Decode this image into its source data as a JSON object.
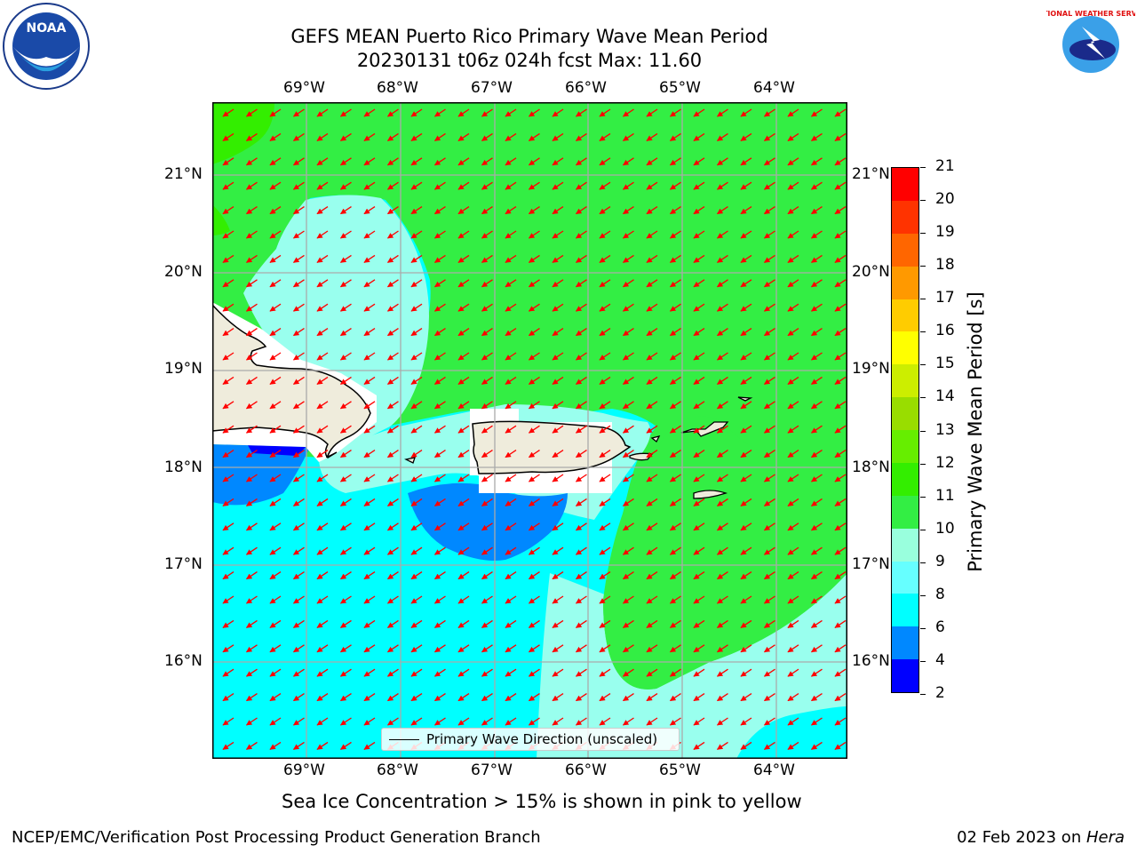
{
  "title": {
    "line1": "GEFS MEAN Puerto Rico Primary Wave Mean Period",
    "line2": "20230131 t06z 024h fcst   Max: 11.60"
  },
  "map": {
    "lon_labels": [
      "69°W",
      "68°W",
      "67°W",
      "66°W",
      "65°W",
      "64°W"
    ],
    "lat_labels": [
      "21°N",
      "20°N",
      "19°N",
      "18°N",
      "17°N",
      "16°N"
    ],
    "legend_label": "Primary Wave Direction (unscaled)"
  },
  "colorbar": {
    "label": "Primary Wave Mean Period [s]",
    "ticks": [
      "21",
      "20",
      "19",
      "18",
      "17",
      "16",
      "15",
      "14",
      "13",
      "12",
      "11",
      "10",
      "9",
      "8",
      "6",
      "4",
      "2"
    ],
    "colors": [
      "#ff0000",
      "#ff3300",
      "#ff6600",
      "#ff9900",
      "#ffcc00",
      "#ffff00",
      "#ccee00",
      "#99dd00",
      "#66ee00",
      "#33ee00",
      "#33ee44",
      "#99ffdd",
      "#66ffff",
      "#00ffff",
      "#0088ff",
      "#0000ff"
    ]
  },
  "note": "Sea Ice Concentration > 15% is shown in pink to yellow",
  "footer": {
    "left": "NCEP/EMC/Verification Post Processing Product Generation Branch",
    "date": "02 Feb 2023 on ",
    "host": "Hera"
  },
  "logos": {
    "noaa": "NOAA",
    "nws": "NATIONAL WEATHER SERVICE"
  }
}
